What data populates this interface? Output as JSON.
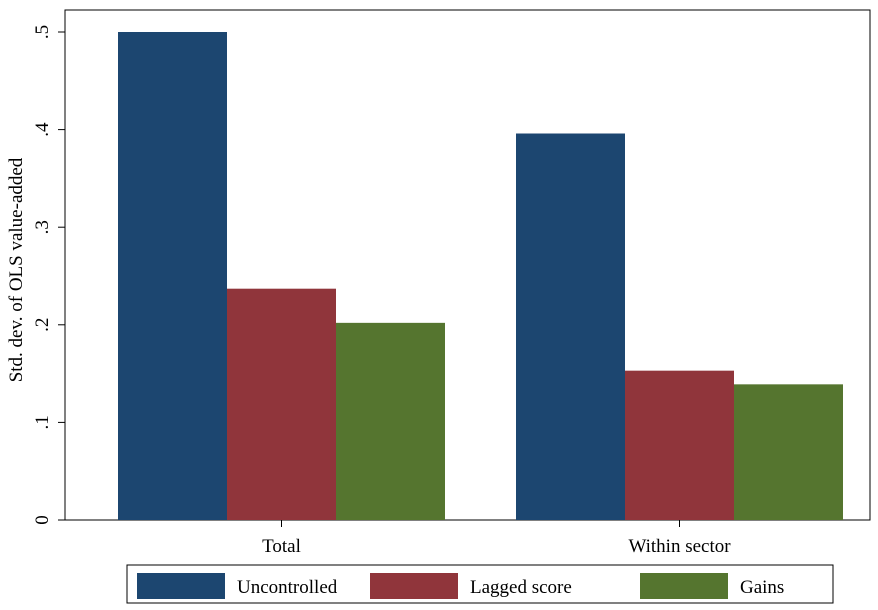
{
  "chart_data": {
    "type": "bar",
    "categories": [
      "Total",
      "Within sector"
    ],
    "series": [
      {
        "name": "Uncontrolled",
        "color": "#1c4670",
        "values": [
          0.5,
          0.396
        ]
      },
      {
        "name": "Lagged score",
        "color": "#90353b",
        "values": [
          0.237,
          0.153
        ]
      },
      {
        "name": "Gains",
        "color": "#55752f",
        "values": [
          0.202,
          0.139
        ]
      }
    ],
    "title": "",
    "xlabel": "",
    "ylabel": "Std. dev. of OLS value-added",
    "ylim": [
      0,
      0.5
    ],
    "yticks": [
      0,
      0.1,
      0.2,
      0.3,
      0.4,
      0.5
    ],
    "ytick_labels": [
      "0",
      ".1",
      ".2",
      ".3",
      ".4",
      ".5"
    ],
    "grid": false,
    "legend_position": "bottom"
  }
}
